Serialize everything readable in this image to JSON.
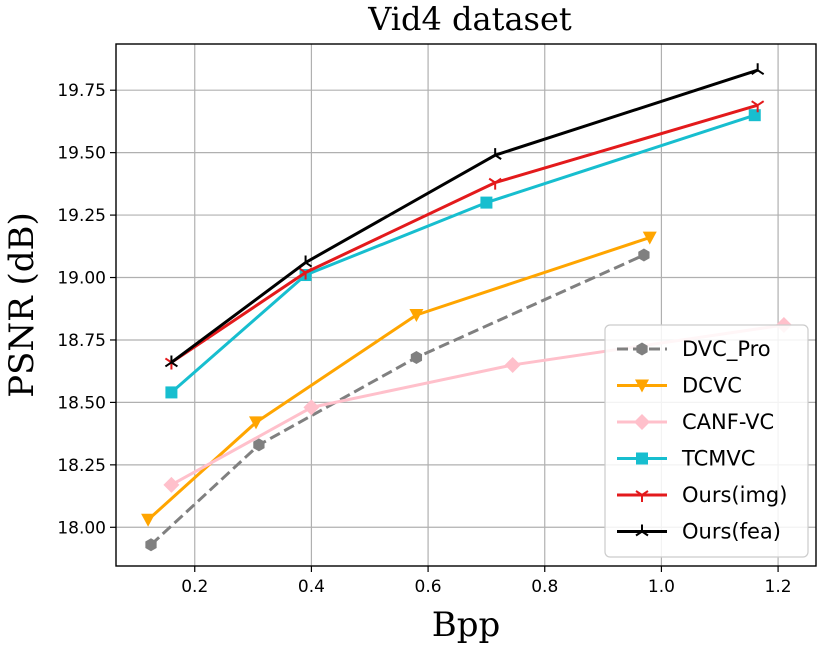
{
  "chart_data": {
    "type": "line",
    "title": "Vid4 dataset",
    "xlabel": "Bpp",
    "ylabel": "PSNR (dB)",
    "xlim": [
      0.065,
      1.265
    ],
    "ylim": [
      17.845,
      19.935
    ],
    "grid": true,
    "legend_position": "lower-right",
    "x_ticks": [
      0.2,
      0.4,
      0.6,
      0.8,
      1.0,
      1.2
    ],
    "x_tick_labels": [
      "0.2",
      "0.4",
      "0.6",
      "0.8",
      "1.0",
      "1.2"
    ],
    "y_ticks": [
      18.0,
      18.25,
      18.5,
      18.75,
      19.0,
      19.25,
      19.5,
      19.75
    ],
    "y_tick_labels": [
      "18.00",
      "18.25",
      "18.50",
      "18.75",
      "19.00",
      "19.25",
      "19.50",
      "19.75"
    ],
    "series": [
      {
        "name": "DVC_Pro",
        "color": "#808080",
        "dash": true,
        "marker": "hexagon",
        "x": [
          0.125,
          0.31,
          0.58,
          0.97
        ],
        "y": [
          17.93,
          18.33,
          18.68,
          19.09
        ]
      },
      {
        "name": "DCVC",
        "color": "#ffa500",
        "dash": false,
        "marker": "triangle-down",
        "x": [
          0.12,
          0.305,
          0.58,
          0.98
        ],
        "y": [
          18.03,
          18.42,
          18.85,
          19.16
        ]
      },
      {
        "name": "CANF-VC",
        "color": "#ffc0cb",
        "dash": false,
        "marker": "diamond",
        "x": [
          0.16,
          0.4,
          0.745,
          1.21
        ],
        "y": [
          18.17,
          18.48,
          18.65,
          18.81
        ]
      },
      {
        "name": "TCMVC",
        "color": "#17becf",
        "dash": false,
        "marker": "square",
        "x": [
          0.16,
          0.39,
          0.7,
          1.16
        ],
        "y": [
          18.54,
          19.01,
          19.3,
          19.65
        ]
      },
      {
        "name": "Ours(img)",
        "color": "#e31a1c",
        "dash": false,
        "marker": "tri-down",
        "x": [
          0.16,
          0.39,
          0.715,
          1.165
        ],
        "y": [
          18.66,
          19.02,
          19.38,
          19.69
        ]
      },
      {
        "name": "Ours(fea)",
        "color": "#000000",
        "dash": false,
        "marker": "tri-up",
        "x": [
          0.16,
          0.39,
          0.715,
          1.165
        ],
        "y": [
          18.66,
          19.06,
          19.49,
          19.83
        ]
      }
    ]
  }
}
